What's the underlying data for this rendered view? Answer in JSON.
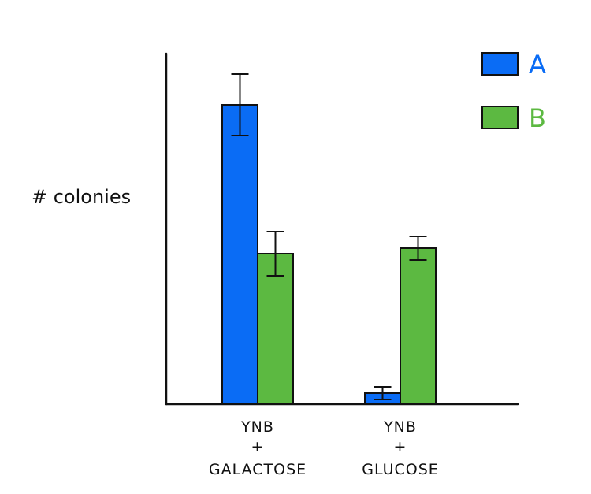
{
  "chart_data": {
    "type": "bar",
    "title": "",
    "xlabel": "",
    "ylabel": "# colonies",
    "categories": [
      [
        "YNB",
        "+",
        "GALACTOSE"
      ],
      [
        "YNB",
        "+",
        "GLUCOSE"
      ]
    ],
    "series": [
      {
        "name": "A",
        "color": "#0a6cf5",
        "values": [
          380,
          14
        ],
        "errors": [
          39,
          8
        ]
      },
      {
        "name": "B",
        "color": "#5cb941",
        "values": [
          191,
          198
        ],
        "errors": [
          28,
          15
        ]
      }
    ],
    "ylim": [
      0,
      450
    ],
    "grid": false,
    "legend_position": "top-right"
  }
}
